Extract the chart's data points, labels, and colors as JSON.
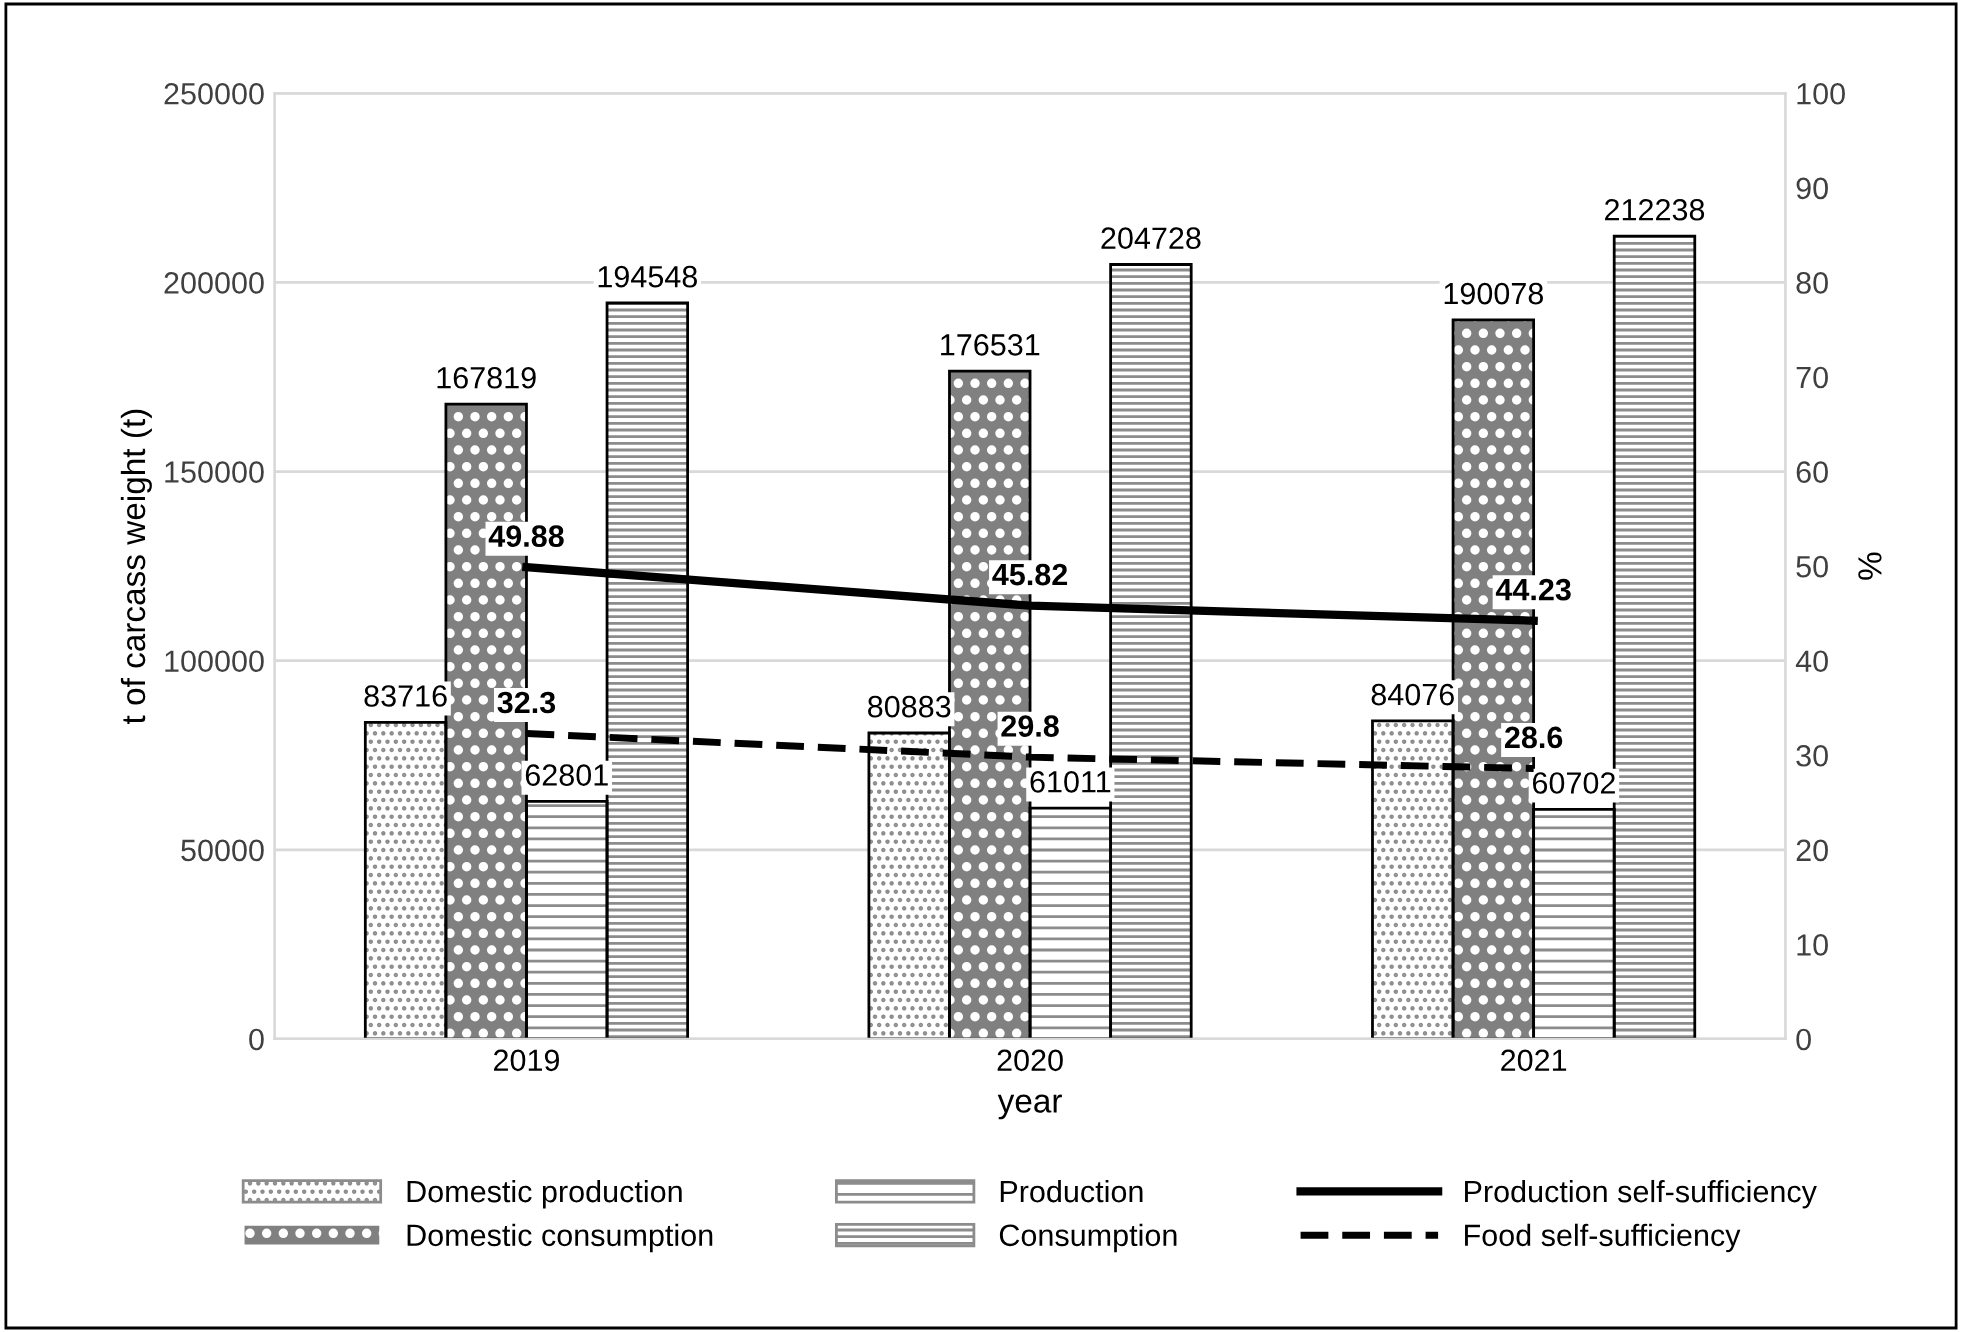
{
  "chart_data": {
    "type": "bar",
    "xlabel": "year",
    "ylabel": "t of carcass weight (t)",
    "y2label": "%",
    "categories": [
      "2019",
      "2020",
      "2021"
    ],
    "series": [
      {
        "name": "Domestic production",
        "color": "#ffffff",
        "values": [
          83716,
          80883,
          84076
        ]
      },
      {
        "name": "Domestic consumption",
        "color": "#808080",
        "values": [
          167819,
          176531,
          190078
        ]
      },
      {
        "name": "Production",
        "color": "#ffffff",
        "values": [
          62801,
          61011,
          60702
        ]
      },
      {
        "name": "Consumption",
        "color": "#ffffff",
        "values": [
          194548,
          204728,
          212238
        ]
      },
      {
        "name": "Production self-sufficiency",
        "type": "line",
        "axis": "y2",
        "color": "#000000",
        "line_style": "solid",
        "values": [
          49.88,
          45.82,
          44.23
        ]
      },
      {
        "name": "Food self-sufficiency",
        "type": "line",
        "axis": "y2",
        "color": "#000000",
        "line_style": "dashed",
        "values": [
          32.3,
          29.8,
          28.6
        ]
      }
    ],
    "ylim": [
      0,
      250000
    ],
    "yticks": [
      0,
      50000,
      100000,
      150000,
      200000,
      250000
    ],
    "y2lim": [
      0,
      100
    ],
    "y2ticks": [
      0,
      10,
      20,
      30,
      40,
      50,
      60,
      70,
      80,
      90,
      100
    ],
    "data_labels": true,
    "grid": "y",
    "legend": "bottom",
    "marker": "none"
  }
}
